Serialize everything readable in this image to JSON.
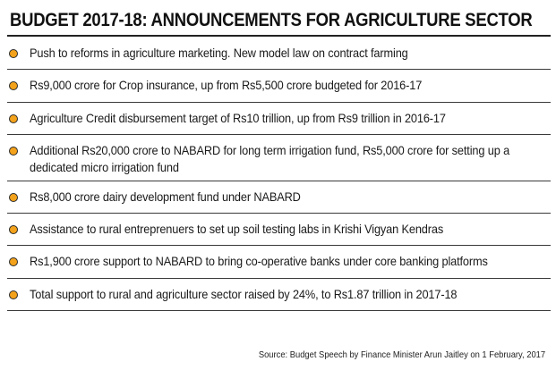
{
  "title": "BUDGET 2017-18: ANNOUNCEMENTS FOR AGRICULTURE SECTOR",
  "bullet_color": "#f3a21b",
  "rule_color": "#3a3a3a",
  "items": [
    {
      "text": "Push to reforms in agriculture marketing. New model law on contract farming"
    },
    {
      "text": "Rs9,000 crore for Crop insurance, up from Rs5,500 crore budgeted for 2016-17"
    },
    {
      "text": "Agriculture Credit disbursement target of Rs10 trillion, up from Rs9 trillion in 2016-17"
    },
    {
      "text": "Additional Rs20,000 crore to NABARD for long term irrigation fund, Rs5,000 crore for setting up a dedicated micro irrigation fund"
    },
    {
      "text": "Rs8,000 crore dairy development fund under NABARD"
    },
    {
      "text": "Assistance to rural entreprenuers to set up soil testing labs in Krishi Vigyan Kendras"
    },
    {
      "text": "Rs1,900 crore support to NABARD to bring co-operative banks under core banking platforms"
    },
    {
      "text": "Total support to rural and agriculture sector raised by 24%, to Rs1.87 trillion in 2017-18"
    }
  ],
  "source": "Source: Budget Speech by Finance Minister Arun Jaitley on 1 February, 2017"
}
